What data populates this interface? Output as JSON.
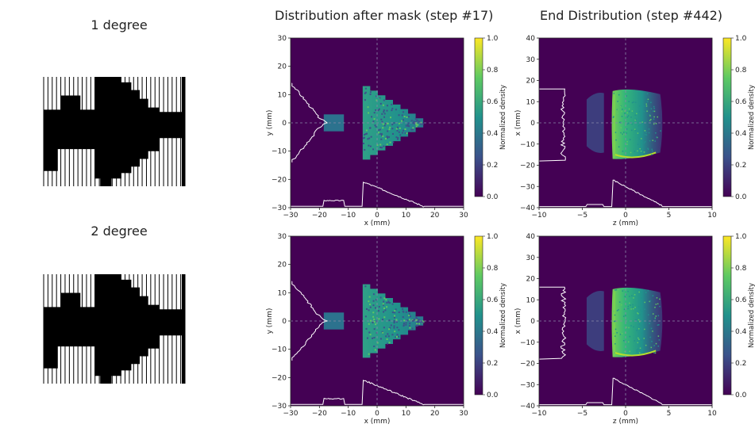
{
  "titles": {
    "mask_column": "",
    "middle": "Distribution after mask (step #17)",
    "right": "End Distribution (step #442)"
  },
  "row_labels": [
    "1 degree",
    "2 degree"
  ],
  "colorbar": {
    "label": "Normalized density",
    "ticks": [
      "0.0",
      "0.2",
      "0.4",
      "0.6",
      "0.8",
      "1.0"
    ]
  },
  "colors": {
    "background": "#440154",
    "cmap": [
      "#440154",
      "#3b528b",
      "#21918c",
      "#5ec962",
      "#fde725"
    ],
    "profile": "#ffffff"
  },
  "chart_data": [
    {
      "type": "heatmap",
      "panel": "top-middle",
      "title": "Distribution after mask (step #17)",
      "xlabel": "x (mm)",
      "ylabel": "y (mm)",
      "xlim": [
        -30,
        30
      ],
      "ylim": [
        -30,
        30
      ],
      "xticks": [
        -30,
        -20,
        -10,
        0,
        10,
        20,
        30
      ],
      "yticks": [
        -30,
        -20,
        -10,
        0,
        10,
        20,
        30
      ],
      "colorbar_label": "Normalized density",
      "colorbar_range": [
        0.0,
        1.0
      ],
      "features": [
        {
          "shape": "rectangle",
          "x": [
            -18.5,
            -11.5
          ],
          "y": [
            -3,
            3
          ]
        },
        {
          "shape": "triangle",
          "x": [
            -5,
            16
          ],
          "y": [
            -13,
            13
          ]
        }
      ]
    },
    {
      "type": "heatmap",
      "panel": "top-right",
      "title": "End Distribution (step #442)",
      "xlabel": "z (mm)",
      "ylabel": "x (mm)",
      "xlim": [
        -10,
        10
      ],
      "ylim": [
        -40,
        40
      ],
      "xticks": [
        -10,
        -5,
        0,
        5,
        10
      ],
      "yticks": [
        -40,
        -30,
        -20,
        -10,
        0,
        10,
        20,
        30,
        40
      ],
      "colorbar_label": "Normalized density",
      "colorbar_range": [
        0.0,
        1.0
      ],
      "features": [
        {
          "shape": "band",
          "z": [
            -4.5,
            -2.5
          ],
          "x": [
            -14,
            14
          ]
        },
        {
          "shape": "crescent",
          "z": [
            -1.5,
            4.0
          ],
          "x": [
            -17,
            16
          ]
        }
      ]
    },
    {
      "type": "heatmap",
      "panel": "bottom-middle",
      "title": "",
      "xlabel": "x (mm)",
      "ylabel": "y (mm)",
      "xlim": [
        -30,
        30
      ],
      "ylim": [
        -30,
        30
      ],
      "xticks": [
        -30,
        -20,
        -10,
        0,
        10,
        20,
        30
      ],
      "yticks": [
        -30,
        -20,
        -10,
        0,
        10,
        20,
        30
      ],
      "colorbar_label": "Normalized density",
      "colorbar_range": [
        0.0,
        1.0
      ],
      "features": [
        {
          "shape": "rectangle",
          "x": [
            -18.5,
            -11.5
          ],
          "y": [
            -3,
            3
          ]
        },
        {
          "shape": "triangle",
          "x": [
            -5,
            16
          ],
          "y": [
            -13,
            13
          ]
        }
      ]
    },
    {
      "type": "heatmap",
      "panel": "bottom-right",
      "title": "",
      "xlabel": "z (mm)",
      "ylabel": "x (mm)",
      "xlim": [
        -10,
        10
      ],
      "ylim": [
        -40,
        40
      ],
      "xticks": [
        -10,
        -5,
        0,
        5,
        10
      ],
      "yticks": [
        -40,
        -30,
        -20,
        -10,
        0,
        10,
        20,
        30,
        40
      ],
      "colorbar_label": "Normalized density",
      "colorbar_range": [
        0.0,
        1.0
      ],
      "features": [
        {
          "shape": "band",
          "z": [
            -4.5,
            -2.5
          ],
          "x": [
            -14,
            14
          ]
        },
        {
          "shape": "crescent",
          "z": [
            -1.5,
            4.0
          ],
          "x": [
            -17,
            16
          ]
        }
      ]
    }
  ]
}
